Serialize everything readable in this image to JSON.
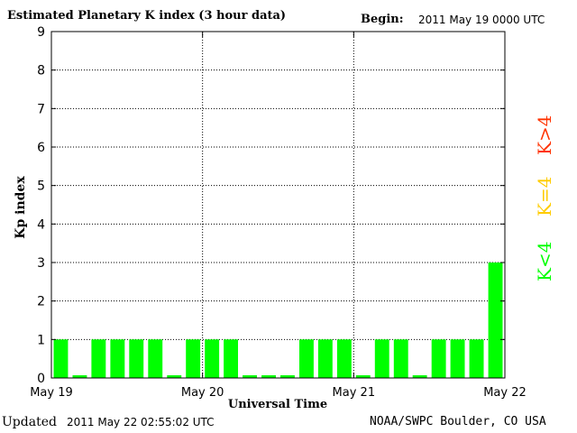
{
  "header": {
    "title": "Estimated Planetary K index (3 hour data)",
    "begin_label": "Begin:",
    "begin_value": "2011 May 19 0000 UTC"
  },
  "footer": {
    "updated_label": "Updated",
    "updated_value": "2011 May 22 02:55:02 UTC",
    "source": "NOAA/SWPC Boulder, CO USA"
  },
  "legend": {
    "high": "K>4",
    "mid": "K=4",
    "low": "K<4"
  },
  "colors": {
    "low": "#00ff00",
    "mid": "#ffcc00",
    "high": "#ff3300"
  },
  "chart_data": {
    "type": "bar",
    "ylabel": "Kp index",
    "xlabel": "Universal Time",
    "ylim": [
      0,
      9
    ],
    "yticks": [
      0,
      1,
      2,
      3,
      4,
      5,
      6,
      7,
      8,
      9
    ],
    "xticks": [
      "May 19",
      "May 20",
      "May 21",
      "May 22"
    ],
    "grid": true,
    "values": [
      1,
      0,
      1,
      1,
      1,
      1,
      0,
      1,
      1,
      1,
      0,
      0,
      0,
      1,
      1,
      1,
      0,
      1,
      1,
      0,
      1,
      1,
      1,
      3
    ]
  }
}
